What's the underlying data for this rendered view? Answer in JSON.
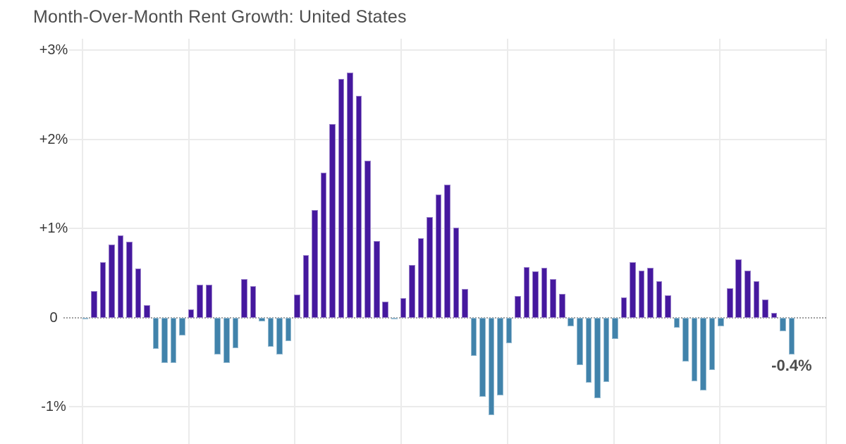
{
  "chart_data": {
    "type": "bar",
    "title": "Month-Over-Month Rent Growth: United States",
    "xlabel": "",
    "ylabel": "",
    "unit": "percent",
    "ylim": [
      -1.42,
      3.13
    ],
    "grid": "light horizontal gridlines at each percent, light vertical gridlines at 12-month (year) boundaries, dotted zero baseline",
    "legend": "none",
    "months_per_vertical_gridline": 12,
    "y_ticks": [
      {
        "label": "+3%",
        "value": 3
      },
      {
        "label": "+2%",
        "value": 2
      },
      {
        "label": "+1%",
        "value": 1
      },
      {
        "label": "0",
        "value": 0
      },
      {
        "label": "-1%",
        "value": -1
      }
    ],
    "values": [
      -0.02,
      0.3,
      0.62,
      0.82,
      0.92,
      0.85,
      0.55,
      0.14,
      -0.35,
      -0.51,
      -0.51,
      -0.2,
      0.09,
      0.37,
      0.37,
      -0.41,
      -0.51,
      -0.34,
      0.43,
      0.35,
      -0.04,
      -0.33,
      -0.41,
      -0.26,
      0.26,
      0.7,
      1.21,
      1.63,
      2.17,
      2.68,
      2.75,
      2.49,
      1.76,
      0.86,
      0.18,
      -0.02,
      0.22,
      0.59,
      0.89,
      1.13,
      1.38,
      1.49,
      1.01,
      0.32,
      -0.43,
      -0.89,
      -1.09,
      -0.87,
      -0.29,
      0.24,
      0.57,
      0.52,
      0.56,
      0.43,
      0.27,
      -0.1,
      -0.53,
      -0.73,
      -0.9,
      -0.72,
      -0.24,
      0.23,
      0.62,
      0.53,
      0.56,
      0.41,
      0.25,
      -0.11,
      -0.49,
      -0.71,
      -0.82,
      -0.59,
      -0.1,
      0.33,
      0.65,
      0.53,
      0.41,
      0.2,
      0.05,
      -0.15,
      -0.41
    ],
    "annotation": {
      "text": "-0.4%",
      "index": 80
    },
    "colors": {
      "positive_bar": "#45189e",
      "negative_bar": "#4183ab",
      "gridline": "#ebebeb",
      "zero_line": "#9f9f9f",
      "text": "#4d4d4d",
      "background": "#ffffff"
    }
  }
}
